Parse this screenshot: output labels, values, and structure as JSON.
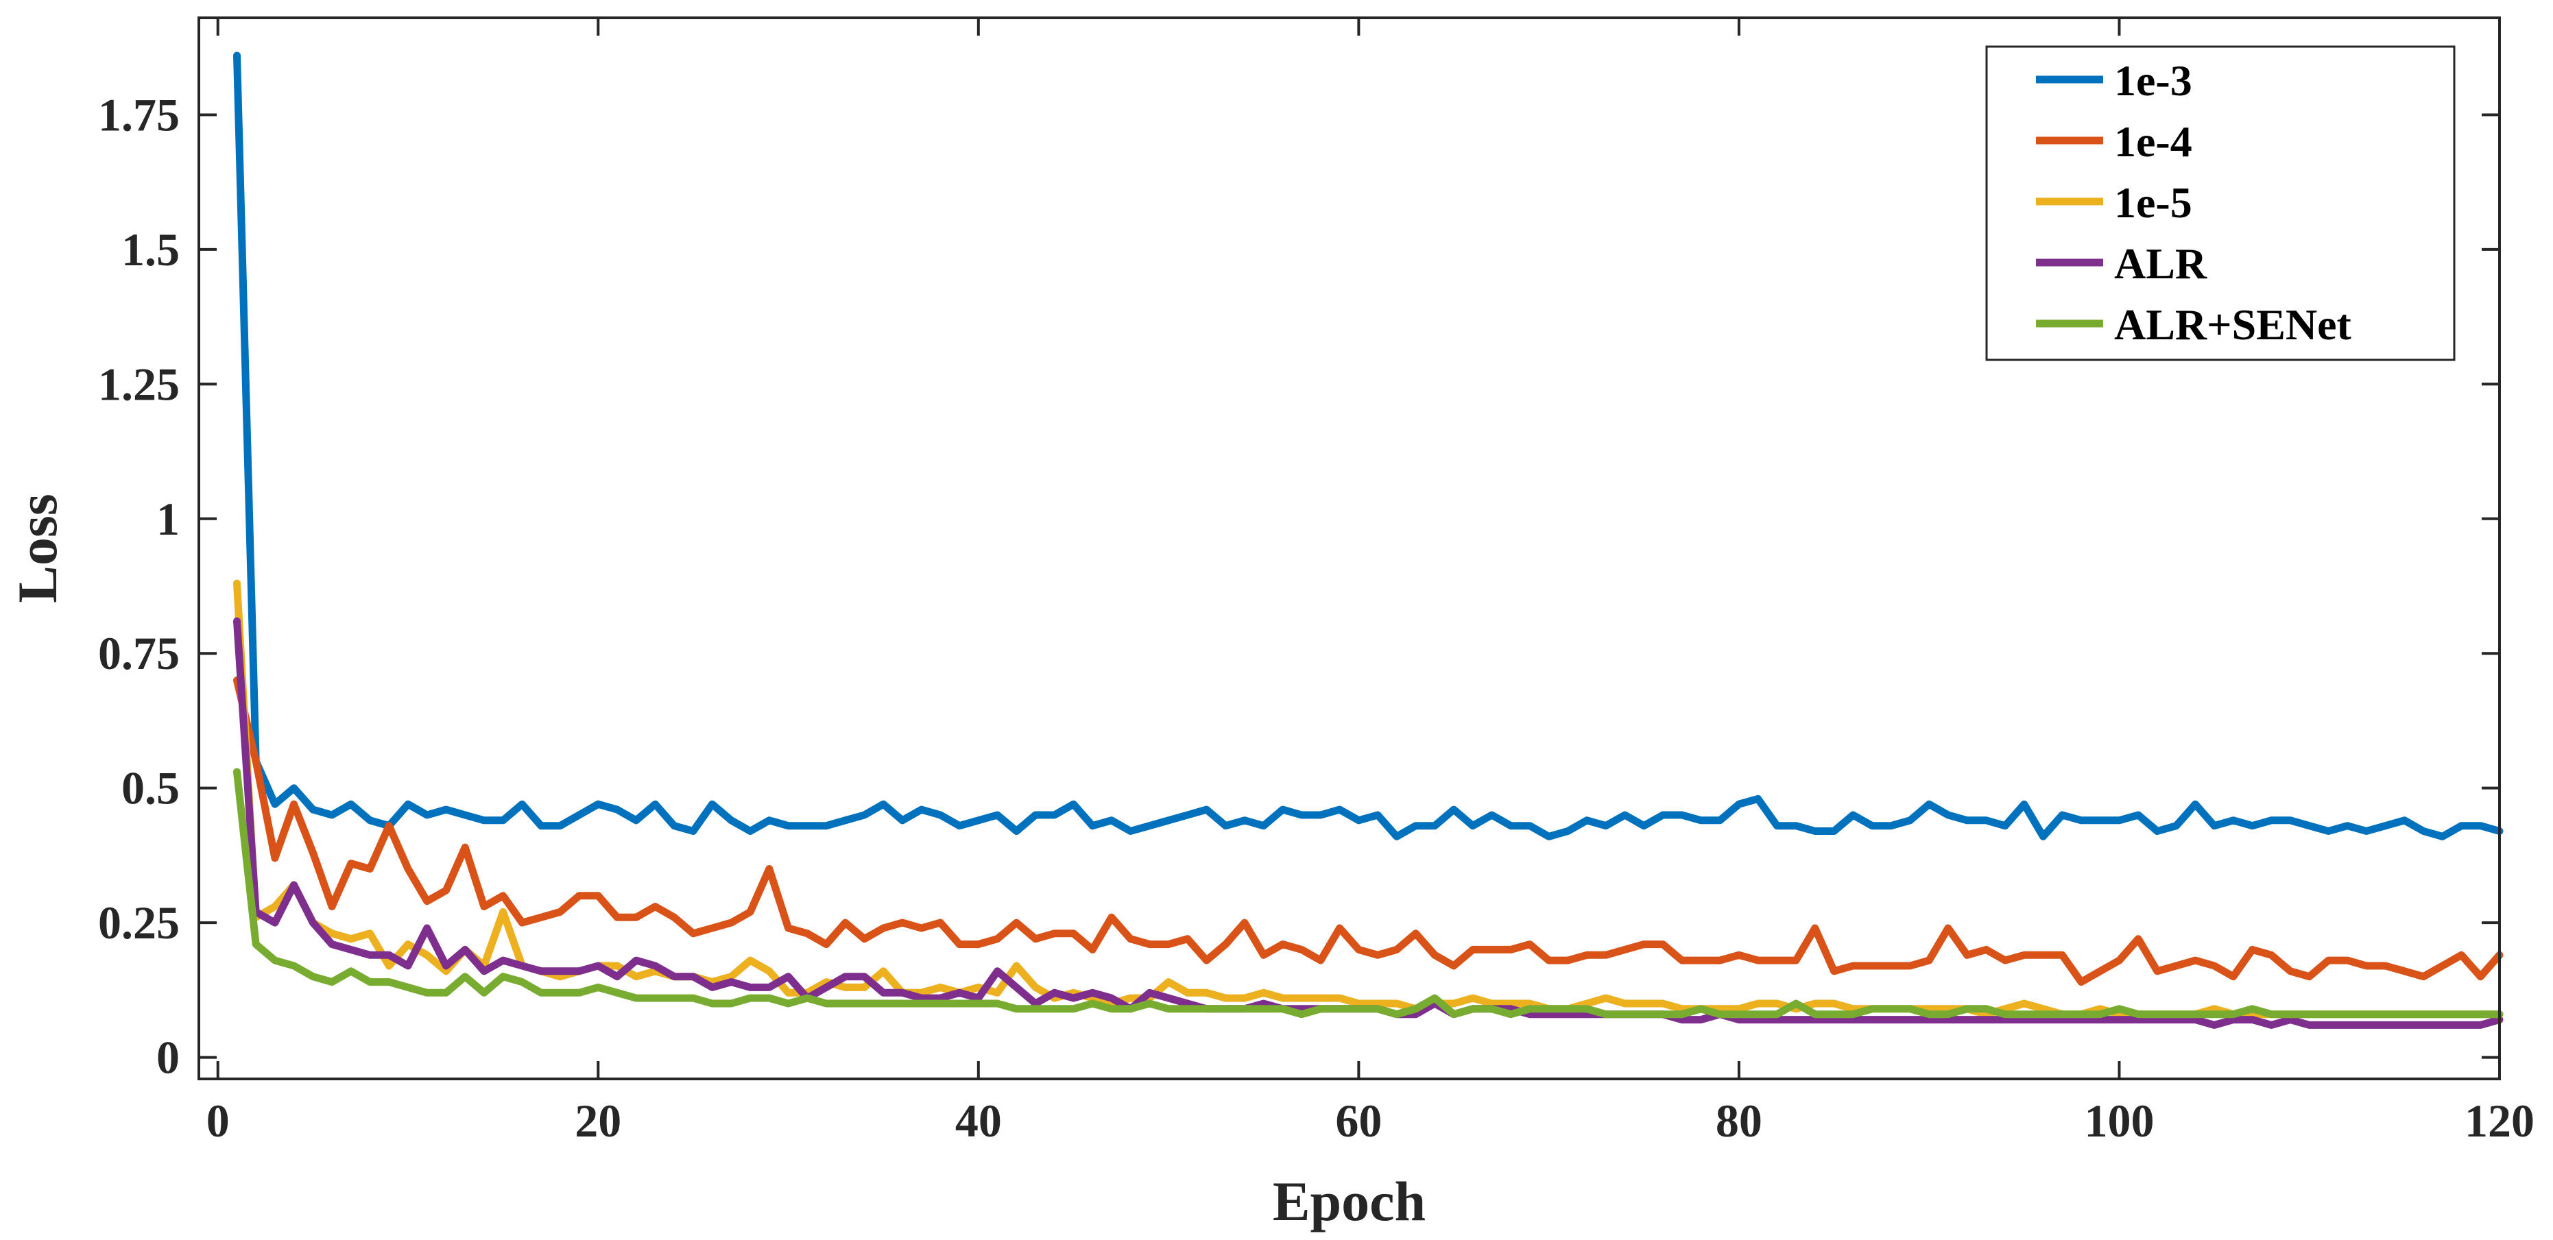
{
  "chart_data": {
    "type": "line",
    "xlabel": "Epoch",
    "ylabel": "Loss",
    "xlim": [
      -1,
      120
    ],
    "ylim": [
      -0.04,
      1.93
    ],
    "xticks": [
      0,
      20,
      40,
      60,
      80,
      100,
      120
    ],
    "yticks": [
      0,
      0.25,
      0.5,
      0.75,
      1,
      1.25,
      1.5,
      1.75
    ],
    "xtick_labels": [
      "0",
      "20",
      "40",
      "60",
      "80",
      "100",
      "120"
    ],
    "ytick_labels": [
      "0",
      "0.25",
      "0.5",
      "0.75",
      "1",
      "1.25",
      "1.5",
      "1.75"
    ],
    "grid": false,
    "legend_position": "top-right",
    "series": [
      {
        "name": "1e-3",
        "color": "#0072BD",
        "values": [
          1.86,
          0.55,
          0.47,
          0.5,
          0.46,
          0.45,
          0.47,
          0.44,
          0.43,
          0.47,
          0.45,
          0.46,
          0.45,
          0.44,
          0.44,
          0.47,
          0.43,
          0.43,
          0.45,
          0.47,
          0.46,
          0.44,
          0.47,
          0.43,
          0.42,
          0.47,
          0.44,
          0.42,
          0.44,
          0.43,
          0.43,
          0.43,
          0.44,
          0.45,
          0.47,
          0.44,
          0.46,
          0.45,
          0.43,
          0.44,
          0.45,
          0.42,
          0.45,
          0.45,
          0.47,
          0.43,
          0.44,
          0.42,
          0.43,
          0.44,
          0.45,
          0.46,
          0.43,
          0.44,
          0.43,
          0.46,
          0.45,
          0.45,
          0.46,
          0.44,
          0.45,
          0.41,
          0.43,
          0.43,
          0.46,
          0.43,
          0.45,
          0.43,
          0.43,
          0.41,
          0.42,
          0.44,
          0.43,
          0.45,
          0.43,
          0.45,
          0.45,
          0.44,
          0.44,
          0.47,
          0.48,
          0.43,
          0.43,
          0.42,
          0.42,
          0.45,
          0.43,
          0.43,
          0.44,
          0.47,
          0.45,
          0.44,
          0.44,
          0.43,
          0.47,
          0.41,
          0.45,
          0.44,
          0.44,
          0.44,
          0.45,
          0.42,
          0.43,
          0.47,
          0.43,
          0.44,
          0.43,
          0.44,
          0.44,
          0.43,
          0.42,
          0.43,
          0.42,
          0.43,
          0.44,
          0.42,
          0.41,
          0.43,
          0.43,
          0.42
        ]
      },
      {
        "name": "1e-4",
        "color": "#D95319",
        "values": [
          0.7,
          0.55,
          0.37,
          0.47,
          0.38,
          0.28,
          0.36,
          0.35,
          0.43,
          0.35,
          0.29,
          0.31,
          0.39,
          0.28,
          0.3,
          0.25,
          0.26,
          0.27,
          0.3,
          0.3,
          0.26,
          0.26,
          0.28,
          0.26,
          0.23,
          0.24,
          0.25,
          0.27,
          0.35,
          0.24,
          0.23,
          0.21,
          0.25,
          0.22,
          0.24,
          0.25,
          0.24,
          0.25,
          0.21,
          0.21,
          0.22,
          0.25,
          0.22,
          0.23,
          0.23,
          0.2,
          0.26,
          0.22,
          0.21,
          0.21,
          0.22,
          0.18,
          0.21,
          0.25,
          0.19,
          0.21,
          0.2,
          0.18,
          0.24,
          0.2,
          0.19,
          0.2,
          0.23,
          0.19,
          0.17,
          0.2,
          0.2,
          0.2,
          0.21,
          0.18,
          0.18,
          0.19,
          0.19,
          0.2,
          0.21,
          0.21,
          0.18,
          0.18,
          0.18,
          0.19,
          0.18,
          0.18,
          0.18,
          0.24,
          0.16,
          0.17,
          0.17,
          0.17,
          0.17,
          0.18,
          0.24,
          0.19,
          0.2,
          0.18,
          0.19,
          0.19,
          0.19,
          0.14,
          0.16,
          0.18,
          0.22,
          0.16,
          0.17,
          0.18,
          0.17,
          0.15,
          0.2,
          0.19,
          0.16,
          0.15,
          0.18,
          0.18,
          0.17,
          0.17,
          0.16,
          0.15,
          0.17,
          0.19,
          0.15,
          0.19
        ]
      },
      {
        "name": "1e-5",
        "color": "#EDB120",
        "values": [
          0.88,
          0.26,
          0.28,
          0.32,
          0.25,
          0.23,
          0.22,
          0.23,
          0.17,
          0.21,
          0.19,
          0.16,
          0.2,
          0.17,
          0.27,
          0.17,
          0.16,
          0.15,
          0.16,
          0.17,
          0.17,
          0.15,
          0.16,
          0.15,
          0.15,
          0.14,
          0.15,
          0.18,
          0.16,
          0.12,
          0.12,
          0.14,
          0.13,
          0.13,
          0.16,
          0.12,
          0.12,
          0.13,
          0.12,
          0.13,
          0.12,
          0.17,
          0.13,
          0.11,
          0.12,
          0.11,
          0.1,
          0.11,
          0.11,
          0.14,
          0.12,
          0.12,
          0.11,
          0.11,
          0.12,
          0.11,
          0.11,
          0.11,
          0.11,
          0.1,
          0.1,
          0.1,
          0.09,
          0.1,
          0.1,
          0.11,
          0.1,
          0.1,
          0.1,
          0.09,
          0.09,
          0.1,
          0.11,
          0.1,
          0.1,
          0.1,
          0.09,
          0.09,
          0.09,
          0.09,
          0.1,
          0.1,
          0.09,
          0.1,
          0.1,
          0.09,
          0.09,
          0.09,
          0.09,
          0.09,
          0.09,
          0.09,
          0.08,
          0.09,
          0.1,
          0.09,
          0.08,
          0.08,
          0.09,
          0.08,
          0.08,
          0.08,
          0.08,
          0.08,
          0.09,
          0.08,
          0.08,
          0.08,
          0.08,
          0.08,
          0.08,
          0.08,
          0.08,
          0.08,
          0.08,
          0.08,
          0.08,
          0.08,
          0.08,
          0.08
        ]
      },
      {
        "name": "ALR",
        "color": "#7E2F8E",
        "values": [
          0.81,
          0.27,
          0.25,
          0.32,
          0.25,
          0.21,
          0.2,
          0.19,
          0.19,
          0.17,
          0.24,
          0.17,
          0.2,
          0.16,
          0.18,
          0.17,
          0.16,
          0.16,
          0.16,
          0.17,
          0.15,
          0.18,
          0.17,
          0.15,
          0.15,
          0.13,
          0.14,
          0.13,
          0.13,
          0.15,
          0.11,
          0.13,
          0.15,
          0.15,
          0.12,
          0.12,
          0.11,
          0.11,
          0.12,
          0.11,
          0.16,
          0.13,
          0.1,
          0.12,
          0.11,
          0.12,
          0.11,
          0.09,
          0.12,
          0.11,
          0.1,
          0.09,
          0.09,
          0.09,
          0.1,
          0.09,
          0.09,
          0.09,
          0.09,
          0.09,
          0.09,
          0.08,
          0.08,
          0.1,
          0.08,
          0.09,
          0.09,
          0.09,
          0.08,
          0.08,
          0.08,
          0.08,
          0.08,
          0.08,
          0.08,
          0.08,
          0.07,
          0.07,
          0.08,
          0.07,
          0.07,
          0.07,
          0.07,
          0.07,
          0.07,
          0.07,
          0.07,
          0.07,
          0.07,
          0.07,
          0.07,
          0.07,
          0.07,
          0.07,
          0.07,
          0.07,
          0.07,
          0.07,
          0.07,
          0.07,
          0.07,
          0.07,
          0.07,
          0.07,
          0.06,
          0.07,
          0.07,
          0.06,
          0.07,
          0.06,
          0.06,
          0.06,
          0.06,
          0.06,
          0.06,
          0.06,
          0.06,
          0.06,
          0.06,
          0.07
        ]
      },
      {
        "name": "ALR+SENet",
        "color": "#77AC30",
        "values": [
          0.53,
          0.21,
          0.18,
          0.17,
          0.15,
          0.14,
          0.16,
          0.14,
          0.14,
          0.13,
          0.12,
          0.12,
          0.15,
          0.12,
          0.15,
          0.14,
          0.12,
          0.12,
          0.12,
          0.13,
          0.12,
          0.11,
          0.11,
          0.11,
          0.11,
          0.1,
          0.1,
          0.11,
          0.11,
          0.1,
          0.11,
          0.1,
          0.1,
          0.1,
          0.1,
          0.1,
          0.1,
          0.1,
          0.1,
          0.1,
          0.1,
          0.09,
          0.09,
          0.09,
          0.09,
          0.1,
          0.09,
          0.09,
          0.1,
          0.09,
          0.09,
          0.09,
          0.09,
          0.09,
          0.09,
          0.09,
          0.08,
          0.09,
          0.09,
          0.09,
          0.09,
          0.08,
          0.09,
          0.11,
          0.08,
          0.09,
          0.09,
          0.08,
          0.09,
          0.09,
          0.09,
          0.09,
          0.08,
          0.08,
          0.08,
          0.08,
          0.08,
          0.09,
          0.08,
          0.08,
          0.08,
          0.08,
          0.1,
          0.08,
          0.08,
          0.08,
          0.09,
          0.09,
          0.09,
          0.08,
          0.08,
          0.09,
          0.09,
          0.08,
          0.08,
          0.08,
          0.08,
          0.08,
          0.08,
          0.09,
          0.08,
          0.08,
          0.08,
          0.08,
          0.08,
          0.08,
          0.09,
          0.08,
          0.08,
          0.08,
          0.08,
          0.08,
          0.08,
          0.08,
          0.08,
          0.08,
          0.08,
          0.08,
          0.08,
          0.08
        ]
      }
    ]
  }
}
